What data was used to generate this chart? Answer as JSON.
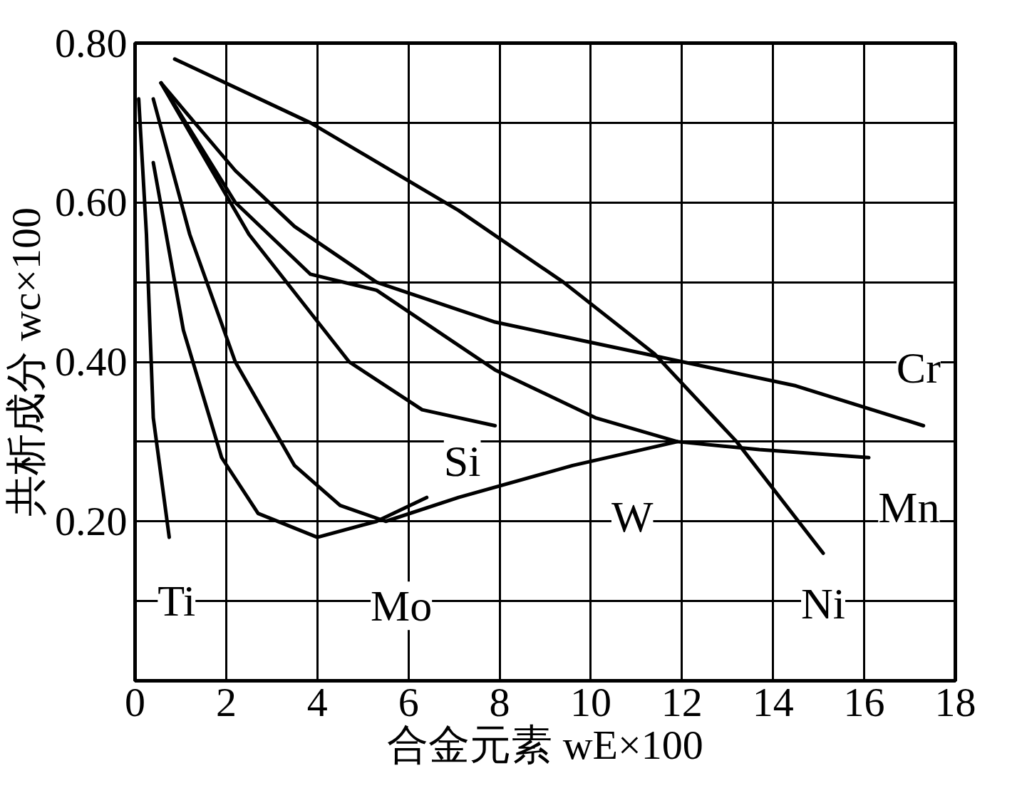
{
  "chart_data": {
    "type": "line",
    "xlabel": "合金元素 wE×100",
    "ylabel": "共析成分 wc×100",
    "xlim": [
      0,
      18
    ],
    "ylim": [
      0,
      0.8
    ],
    "xticks": [
      0,
      2,
      4,
      6,
      8,
      10,
      12,
      14,
      16,
      18
    ],
    "yticks": [
      {
        "value": 0.1,
        "label": null
      },
      {
        "value": 0.2,
        "label": "0.20"
      },
      {
        "value": 0.3,
        "label": null
      },
      {
        "value": 0.4,
        "label": "0.40"
      },
      {
        "value": 0.5,
        "label": null
      },
      {
        "value": 0.6,
        "label": "0.60"
      },
      {
        "value": 0.7,
        "label": null
      },
      {
        "value": 0.8,
        "label": "0.80"
      }
    ],
    "grid": true,
    "series": [
      {
        "name": "Ti",
        "color": "#000000",
        "x": [
          0.08,
          0.25,
          0.4,
          0.75
        ],
        "values": [
          0.73,
          0.56,
          0.33,
          0.18
        ]
      },
      {
        "name": "Mo",
        "color": "#000000",
        "x": [
          0.4,
          1.06,
          1.9,
          2.7,
          4.0,
          5.3,
          6.4
        ],
        "values": [
          0.65,
          0.44,
          0.28,
          0.21,
          0.18,
          0.2,
          0.23
        ]
      },
      {
        "name": "Si",
        "color": "#000000",
        "x": [
          0.57,
          2.5,
          4.7,
          6.3,
          7.9
        ],
        "values": [
          0.75,
          0.56,
          0.4,
          0.34,
          0.32
        ]
      },
      {
        "name": "W",
        "color": "#000000",
        "x": [
          0.4,
          1.2,
          2.2,
          3.5,
          4.5,
          5.5,
          7.1,
          9.6,
          11.9
        ],
        "values": [
          0.73,
          0.56,
          0.4,
          0.27,
          0.22,
          0.2,
          0.23,
          0.27,
          0.3
        ]
      },
      {
        "name": "Ni",
        "color": "#000000",
        "x": [
          0.87,
          3.85,
          7.1,
          9.4,
          11.4,
          13.2,
          15.1
        ],
        "values": [
          0.78,
          0.7,
          0.59,
          0.5,
          0.41,
          0.3,
          0.16
        ]
      },
      {
        "name": "Cr",
        "color": "#000000",
        "x": [
          0.57,
          2.2,
          3.5,
          5.3,
          7.9,
          11.2,
          14.5,
          17.3
        ],
        "values": [
          0.75,
          0.64,
          0.57,
          0.5,
          0.45,
          0.41,
          0.37,
          0.32
        ]
      },
      {
        "name": "Mn",
        "color": "#000000",
        "x": [
          0.57,
          2.2,
          3.85,
          5.3,
          7.9,
          10.1,
          11.9,
          13.7,
          16.1
        ],
        "values": [
          0.75,
          0.6,
          0.51,
          0.49,
          0.39,
          0.33,
          0.3,
          0.29,
          0.28
        ]
      }
    ]
  }
}
